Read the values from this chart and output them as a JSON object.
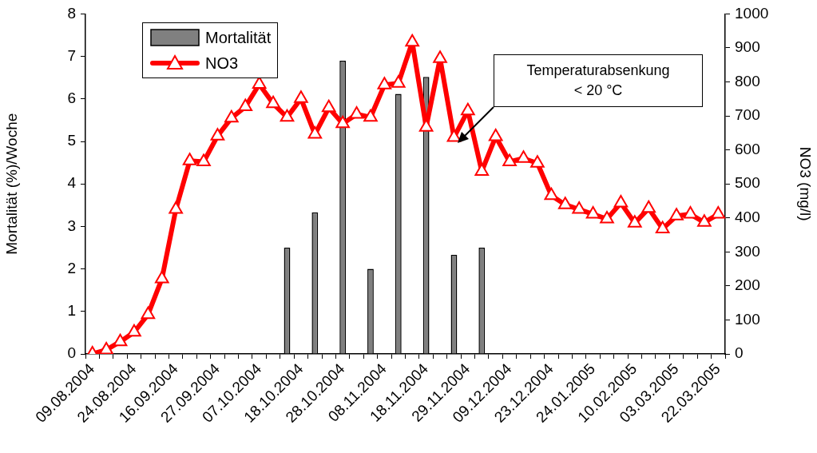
{
  "chart_data": {
    "type": "bar",
    "categories": [
      "09.08.2004",
      null,
      null,
      "24.08.2004",
      null,
      null,
      "16.09.2004",
      null,
      null,
      "27.09.2004",
      null,
      null,
      "07.10.2004",
      null,
      null,
      "18.10.2004",
      null,
      null,
      "28.10.2004",
      null,
      null,
      "08.11.2004",
      null,
      null,
      "18.11.2004",
      null,
      null,
      "29.11.2004",
      null,
      null,
      "09.12.2004",
      null,
      null,
      "23.12.2004",
      null,
      null,
      "24.01.2005",
      null,
      null,
      "10.02.2005",
      null,
      null,
      "03.03.2005",
      null,
      null,
      "22.03.2005"
    ],
    "ylabel": "Mortalität (%)/Woche",
    "y2label": "NO3 (mg/l)",
    "ylim": [
      0,
      8
    ],
    "yticks": [
      0,
      1,
      2,
      3,
      4,
      5,
      6,
      7,
      8
    ],
    "y2lim": [
      0,
      1000
    ],
    "y2ticks": [
      0,
      100,
      200,
      300,
      400,
      500,
      600,
      700,
      800,
      900,
      1000
    ],
    "grid": false,
    "legend": "top left",
    "marker": "triangle",
    "annotations": [
      "Temperaturabsenkung < 20 °C"
    ],
    "series": [
      {
        "name": "Mortalität",
        "color": "#808080",
        "values": [
          null,
          null,
          null,
          null,
          null,
          null,
          null,
          null,
          null,
          null,
          null,
          null,
          null,
          null,
          2.5,
          null,
          3.33,
          null,
          6.9,
          null,
          2.0,
          null,
          6.12,
          null,
          6.52,
          null,
          2.33,
          null,
          2.5,
          null,
          null,
          null,
          null,
          null,
          null,
          null,
          null,
          null,
          null,
          null,
          null,
          null,
          null,
          null,
          null,
          null
        ]
      },
      {
        "name": "NO3",
        "type": "line",
        "axis": "y2",
        "color": "#ff0000",
        "values": [
          0,
          12,
          36,
          64,
          116,
          221,
          425,
          568,
          565,
          641,
          694,
          727,
          793,
          736,
          696,
          751,
          646,
          724,
          677,
          705,
          696,
          791,
          796,
          917,
          667,
          869,
          637,
          715,
          537,
          639,
          565,
          575,
          561,
          466,
          439,
          425,
          411,
          397,
          444,
          385,
          428,
          368,
          406,
          411,
          387,
          411
        ]
      }
    ]
  }
}
